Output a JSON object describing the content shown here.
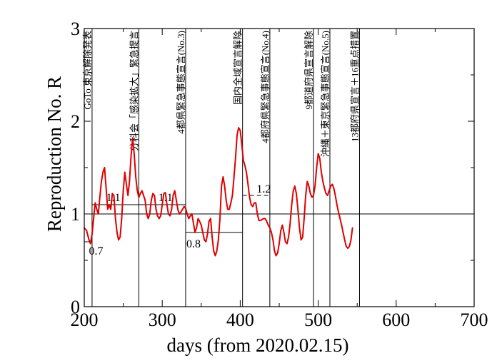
{
  "chart_data": {
    "type": "line",
    "xlabel": "days   (from 2020.02.15)",
    "ylabel": "Reproduction No.  R",
    "xlim": [
      200,
      700
    ],
    "ylim": [
      0,
      3
    ],
    "xticks": [
      "200",
      "300",
      "400",
      "500",
      "600",
      "700"
    ],
    "yticks": [
      "0",
      "1",
      "2",
      "3"
    ],
    "grid": false,
    "series": [
      {
        "color": "#e00000",
        "points": [
          [
            200,
            0.85
          ],
          [
            203,
            0.82
          ],
          [
            206,
            0.72
          ],
          [
            208,
            0.68
          ],
          [
            210,
            0.78
          ],
          [
            212,
            0.95
          ],
          [
            214,
            1.12
          ],
          [
            216,
            1.05
          ],
          [
            218,
            1.0
          ],
          [
            220,
            1.18
          ],
          [
            222,
            1.35
          ],
          [
            224,
            1.45
          ],
          [
            226,
            1.5
          ],
          [
            228,
            1.28
          ],
          [
            230,
            1.05
          ],
          [
            232,
            1.1
          ],
          [
            234,
            1.05
          ],
          [
            236,
            1.22
          ],
          [
            238,
            1.2
          ],
          [
            240,
            0.95
          ],
          [
            242,
            0.8
          ],
          [
            244,
            0.72
          ],
          [
            246,
            0.75
          ],
          [
            248,
            0.95
          ],
          [
            250,
            1.25
          ],
          [
            252,
            1.45
          ],
          [
            254,
            1.32
          ],
          [
            256,
            1.2
          ],
          [
            258,
            1.35
          ],
          [
            260,
            1.62
          ],
          [
            262,
            1.82
          ],
          [
            264,
            1.65
          ],
          [
            266,
            1.4
          ],
          [
            268,
            1.25
          ],
          [
            270,
            1.18
          ],
          [
            272,
            1.22
          ],
          [
            274,
            1.25
          ],
          [
            276,
            1.2
          ],
          [
            278,
            1.15
          ],
          [
            280,
            1.0
          ],
          [
            282,
            0.95
          ],
          [
            284,
            1.0
          ],
          [
            286,
            1.15
          ],
          [
            288,
            1.22
          ],
          [
            290,
            1.2
          ],
          [
            292,
            1.05
          ],
          [
            294,
            0.98
          ],
          [
            296,
            0.95
          ],
          [
            298,
            0.98
          ],
          [
            300,
            1.1
          ],
          [
            302,
            1.22
          ],
          [
            304,
            1.23
          ],
          [
            306,
            1.1
          ],
          [
            308,
            1.0
          ],
          [
            310,
            0.98
          ],
          [
            312,
            1.05
          ],
          [
            314,
            1.2
          ],
          [
            316,
            1.25
          ],
          [
            318,
            1.15
          ],
          [
            320,
            1.05
          ],
          [
            322,
            1.0
          ],
          [
            324,
            1.02
          ],
          [
            326,
            1.05
          ],
          [
            328,
            1.08
          ],
          [
            330,
            1.06
          ],
          [
            332,
            1.0
          ],
          [
            334,
            0.95
          ],
          [
            336,
            0.98
          ],
          [
            338,
            1.0
          ],
          [
            340,
            0.9
          ],
          [
            342,
            0.8
          ],
          [
            344,
            0.85
          ],
          [
            346,
            0.95
          ],
          [
            348,
            0.92
          ],
          [
            350,
            0.88
          ],
          [
            352,
            0.8
          ],
          [
            354,
            0.72
          ],
          [
            356,
            0.7
          ],
          [
            358,
            0.78
          ],
          [
            360,
            0.92
          ],
          [
            362,
            0.95
          ],
          [
            364,
            0.75
          ],
          [
            366,
            0.6
          ],
          [
            368,
            0.55
          ],
          [
            370,
            0.6
          ],
          [
            372,
            0.72
          ],
          [
            374,
            0.95
          ],
          [
            376,
            1.3
          ],
          [
            378,
            1.4
          ],
          [
            380,
            1.3
          ],
          [
            382,
            1.15
          ],
          [
            384,
            1.05
          ],
          [
            386,
            1.05
          ],
          [
            388,
            1.12
          ],
          [
            390,
            1.2
          ],
          [
            392,
            1.4
          ],
          [
            394,
            1.6
          ],
          [
            396,
            1.85
          ],
          [
            398,
            1.93
          ],
          [
            400,
            1.9
          ],
          [
            402,
            1.75
          ],
          [
            404,
            1.58
          ],
          [
            406,
            1.52
          ],
          [
            408,
            1.45
          ],
          [
            410,
            1.32
          ],
          [
            412,
            1.18
          ],
          [
            414,
            1.1
          ],
          [
            416,
            1.08
          ],
          [
            418,
            1.12
          ],
          [
            420,
            1.12
          ],
          [
            422,
            1.0
          ],
          [
            424,
            0.93
          ],
          [
            426,
            0.93
          ],
          [
            428,
            0.94
          ],
          [
            430,
            0.95
          ],
          [
            432,
            0.95
          ],
          [
            434,
            0.92
          ],
          [
            436,
            0.88
          ],
          [
            438,
            0.85
          ],
          [
            440,
            0.8
          ],
          [
            442,
            0.72
          ],
          [
            444,
            0.6
          ],
          [
            446,
            0.55
          ],
          [
            448,
            0.58
          ],
          [
            450,
            0.68
          ],
          [
            452,
            0.82
          ],
          [
            454,
            0.88
          ],
          [
            456,
            0.8
          ],
          [
            458,
            0.7
          ],
          [
            460,
            0.68
          ],
          [
            462,
            0.75
          ],
          [
            464,
            0.9
          ],
          [
            466,
            1.1
          ],
          [
            468,
            1.25
          ],
          [
            470,
            1.3
          ],
          [
            472,
            1.22
          ],
          [
            474,
            1.05
          ],
          [
            476,
            0.85
          ],
          [
            478,
            0.72
          ],
          [
            480,
            0.75
          ],
          [
            482,
            0.95
          ],
          [
            484,
            1.2
          ],
          [
            486,
            1.35
          ],
          [
            488,
            1.3
          ],
          [
            490,
            1.22
          ],
          [
            492,
            1.18
          ],
          [
            494,
            1.2
          ],
          [
            496,
            1.3
          ],
          [
            498,
            1.5
          ],
          [
            500,
            1.65
          ],
          [
            502,
            1.6
          ],
          [
            504,
            1.45
          ],
          [
            506,
            1.35
          ],
          [
            508,
            1.28
          ],
          [
            510,
            1.22
          ],
          [
            512,
            1.2
          ],
          [
            514,
            1.25
          ],
          [
            516,
            1.3
          ],
          [
            518,
            1.32
          ],
          [
            520,
            1.28
          ],
          [
            522,
            1.2
          ],
          [
            524,
            1.1
          ],
          [
            526,
            1.02
          ],
          [
            528,
            0.95
          ],
          [
            530,
            0.88
          ],
          [
            532,
            0.8
          ],
          [
            534,
            0.72
          ],
          [
            536,
            0.65
          ],
          [
            538,
            0.63
          ],
          [
            540,
            0.65
          ],
          [
            542,
            0.72
          ],
          [
            544,
            0.85
          ]
        ]
      }
    ],
    "reference_lines": [
      {
        "y": 1.0,
        "x_from": 200,
        "x_to": 700,
        "style": "solid",
        "label": ""
      },
      {
        "y": 0.7,
        "x_from": 200,
        "x_to": 210,
        "style": "solid",
        "label": "0.7",
        "label_x": 206,
        "label_y": 0.56
      },
      {
        "y": 1.1,
        "x_from": 210,
        "x_to": 330,
        "style": "solid",
        "label": "1.1",
        "label_x": 228,
        "label_y": 1.14
      },
      {
        "y": 1.1,
        "x_from": 270,
        "x_to": 330,
        "style": "solid",
        "label": "1.1",
        "label_x": 295,
        "label_y": 1.14
      },
      {
        "y": 0.8,
        "x_from": 330,
        "x_to": 403,
        "style": "solid",
        "label": "0.8",
        "label_x": 331,
        "label_y": 0.64
      },
      {
        "y": 1.2,
        "x_from": 403,
        "x_to": 438,
        "style": "dashed",
        "label": "1.2",
        "label_x": 421,
        "label_y": 1.23
      }
    ],
    "events": [
      {
        "x": 210,
        "label": "GoTo 東京解除発表"
      },
      {
        "x": 270,
        "label": "分科会「感染拡大」緊急提言"
      },
      {
        "x": 330,
        "label": "4都県緊急事態宣言(No.3)"
      },
      {
        "x": 403,
        "label": "国内全域宣言解除"
      },
      {
        "x": 438,
        "label": "4都府県緊急事態宣言(No.4)"
      },
      {
        "x": 494,
        "label": "9都道府県宣言解除"
      },
      {
        "x": 515,
        "label": "沖縄＋東京緊急事態宣言(No.5)"
      },
      {
        "x": 553,
        "label": "13都府県宣言＋16重点措置"
      }
    ]
  }
}
